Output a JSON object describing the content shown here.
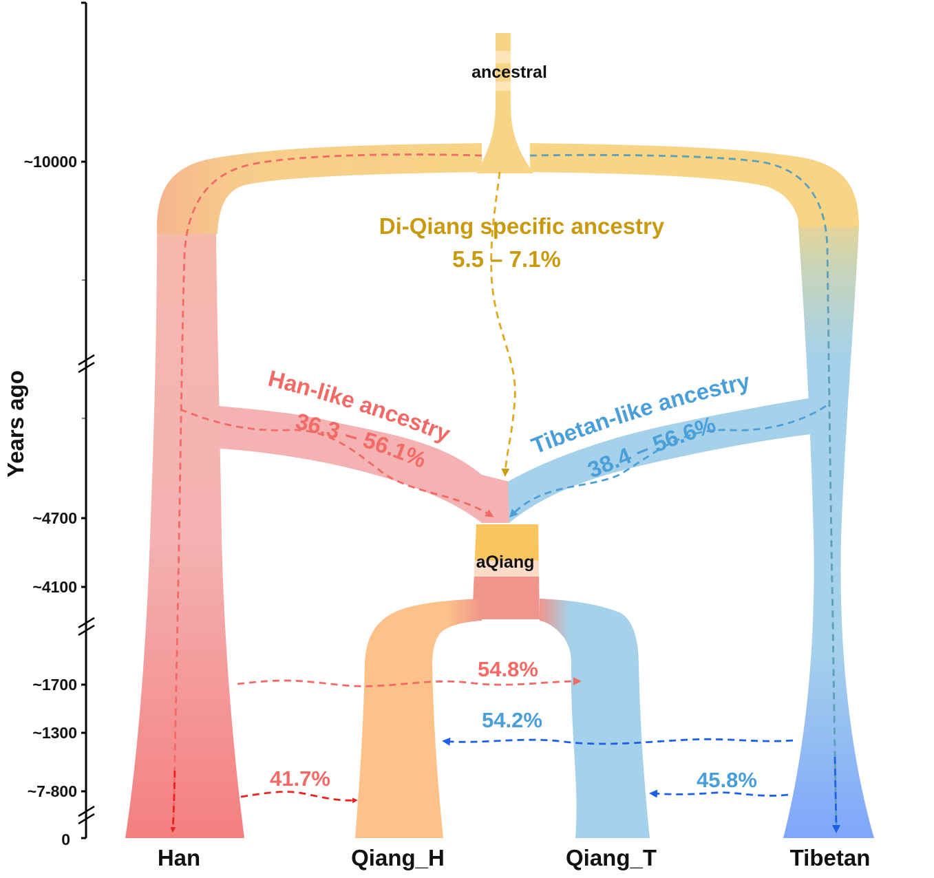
{
  "axis": {
    "label": "Years ago",
    "ticks": [
      "~10000",
      "~4700",
      "~4100",
      "~1700",
      "~1300",
      "~7-800",
      "0"
    ]
  },
  "nodes": {
    "ancestral": "ancestral",
    "aqiang": "aQiang"
  },
  "populations": [
    "Han",
    "Qiang_H",
    "Qiang_T",
    "Tibetan"
  ],
  "ancestry": {
    "di_qiang": {
      "label": "Di-Qiang specific ancestry",
      "range": "5.5 – 7.1%",
      "color": "#C99A10"
    },
    "han_like": {
      "label": "Han-like ancestry",
      "range": "36.3 – 56.1%",
      "color": "#F26A66"
    },
    "tibetan_like": {
      "label": "Tibetan-like ancestry",
      "range": "38.4 – 56.6%",
      "color": "#4A9FD8"
    }
  },
  "admixture": {
    "han_to_qiang_t": "54.8%",
    "tibetan_to_qiang_h": "54.2%",
    "han_to_qiang_h": "41.7%",
    "tibetan_to_qiang_t": "45.8%"
  },
  "colors": {
    "ancestral": "#F7D486",
    "han": "#F4A3A3",
    "han_dark": "#F47F7F",
    "tibetan": "#A6D1EA",
    "tibetan_dark": "#7FA6FB",
    "qiang_h": "#FDC28A",
    "aqiang_top": "#F8C55E",
    "aqiang_mid": "#FCDCC6",
    "aqiang_bottom": "#F0958C"
  }
}
